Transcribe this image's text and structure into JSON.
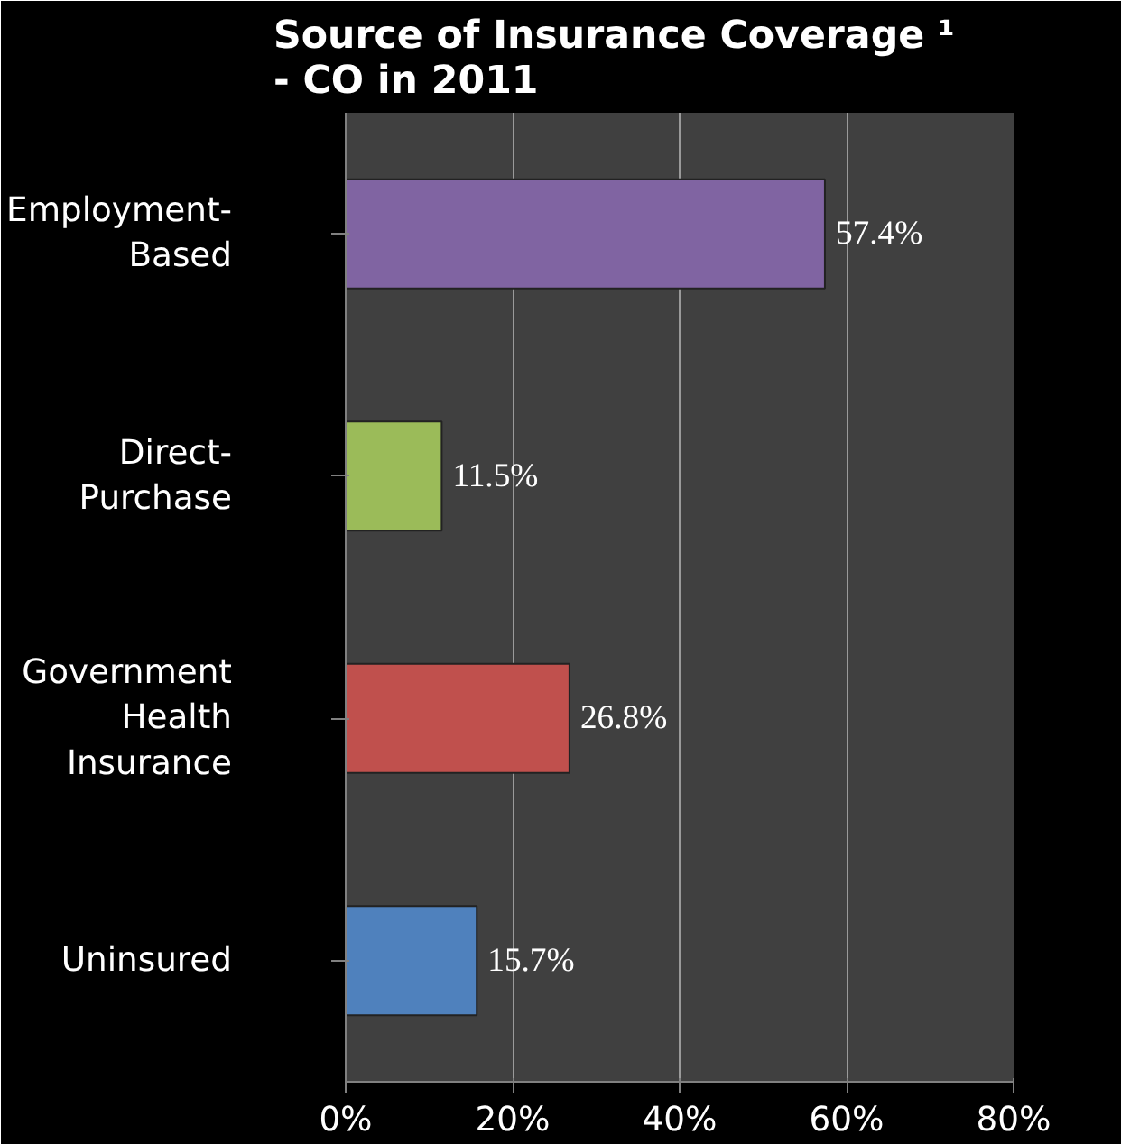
{
  "chart_data": {
    "type": "bar",
    "orientation": "horizontal",
    "title": "Source of Insurance Coverage ¹\n- CO in 2011",
    "categories": [
      "Employment-\nBased",
      "Direct-\nPurchase",
      "Government\nHealth\nInsurance",
      "Uninsured"
    ],
    "values": [
      57.4,
      11.5,
      26.8,
      15.7
    ],
    "colors": [
      "#8064a2",
      "#9bbb59",
      "#c0504d",
      "#4f81bd"
    ],
    "value_labels": [
      "57.4%",
      "11.5%",
      "26.8%",
      "15.7%"
    ],
    "xlim": [
      0,
      80
    ],
    "xticks": [
      {
        "value": 0,
        "label": "0%"
      },
      {
        "value": 20,
        "label": "20%"
      },
      {
        "value": 40,
        "label": "40%"
      },
      {
        "value": 60,
        "label": "60%"
      },
      {
        "value": 80,
        "label": "80%"
      }
    ],
    "grid": "x"
  }
}
